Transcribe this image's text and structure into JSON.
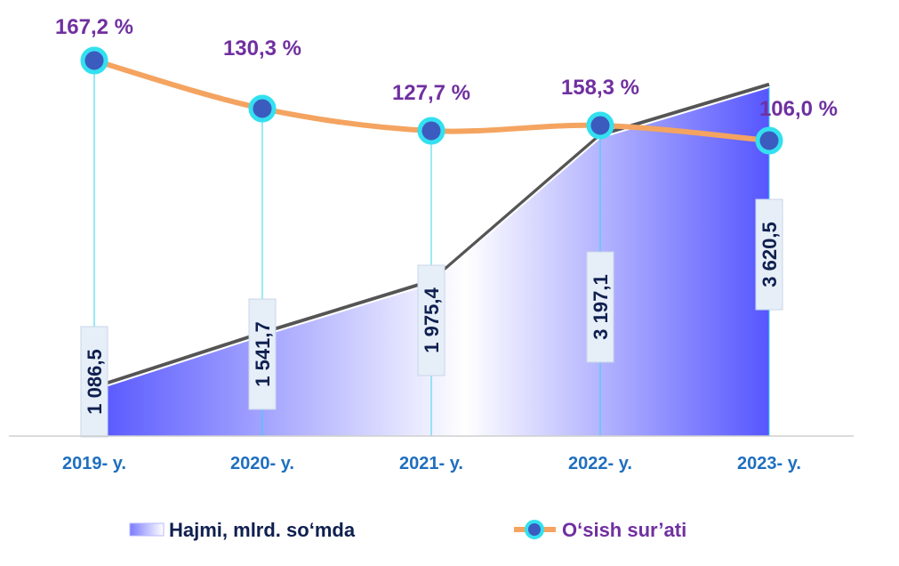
{
  "chart_data": {
    "type": "area",
    "categories": [
      "2019- y.",
      "2020- y.",
      "2021- y.",
      "2022- y.",
      "2023- y."
    ],
    "series": [
      {
        "name": "Hajmi, mlrd. so‘mda",
        "kind": "area",
        "values": [
          1086.5,
          1541.7,
          1975.4,
          3197.1,
          3620.5
        ],
        "labels": [
          "1 086,5",
          "1 541,7",
          "1 975,4",
          "3 197,1",
          "3 620,5"
        ],
        "color": "#5b5bff"
      },
      {
        "name": "O‘sish sur’ati",
        "kind": "line",
        "values": [
          167.2,
          130.3,
          127.7,
          158.3,
          106.0
        ],
        "labels": [
          "167,2 %",
          "130,3 %",
          "127,7 %",
          "158,3 %",
          "106,0 %"
        ],
        "color": "#f4a460",
        "marker_color": "#3c5bbf",
        "marker_edge": "#33e0f0"
      }
    ],
    "label_color": "#7030a0",
    "value_color": "#0f1f4f",
    "tick_color": "#1f6fbf",
    "legend_position": "bottom",
    "grid": false
  }
}
